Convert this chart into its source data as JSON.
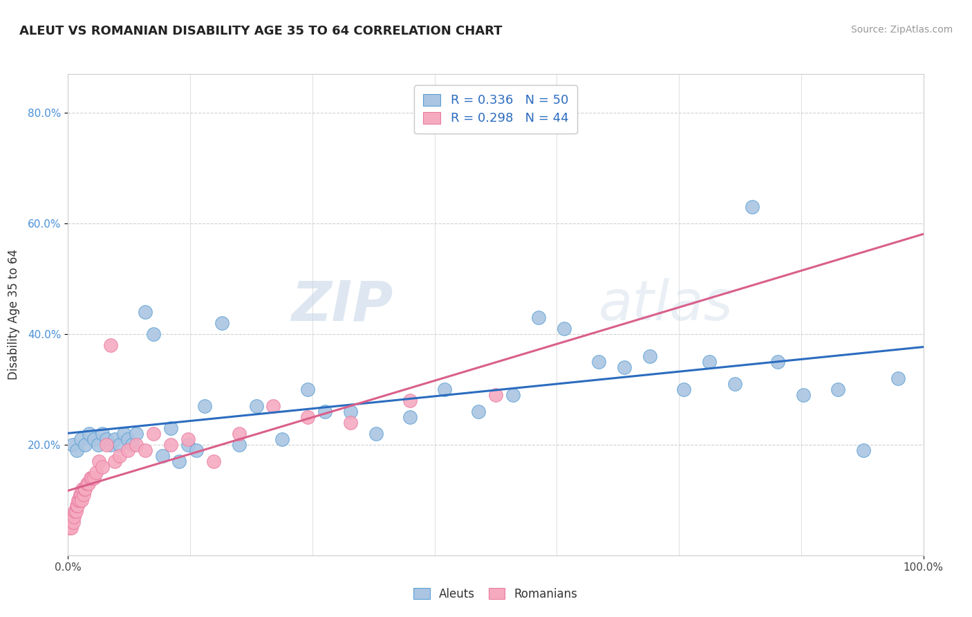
{
  "title": "ALEUT VS ROMANIAN DISABILITY AGE 35 TO 64 CORRELATION CHART",
  "source": "Source: ZipAtlas.com",
  "ylabel": "Disability Age 35 to 64",
  "xlim": [
    0,
    1.0
  ],
  "ylim": [
    0,
    0.87
  ],
  "ytick_values": [
    0.2,
    0.4,
    0.6,
    0.8
  ],
  "ytick_labels": [
    "20.0%",
    "40.0%",
    "60.0%",
    "80.0%"
  ],
  "legend_r1": "R = 0.336",
  "legend_n1": "N = 50",
  "legend_r2": "R = 0.298",
  "legend_n2": "N = 44",
  "aleut_color": "#aac5e2",
  "romanian_color": "#f5aac0",
  "aleut_edge_color": "#5a9fd4",
  "romanian_edge_color": "#e87aa0",
  "aleut_line_color": "#2b6cbf",
  "romanian_line_color": "#d95f8a",
  "watermark_zip": "ZIP",
  "watermark_atlas": "atlas",
  "aleut_x": [
    0.005,
    0.01,
    0.015,
    0.02,
    0.025,
    0.03,
    0.035,
    0.04,
    0.045,
    0.05,
    0.055,
    0.06,
    0.065,
    0.07,
    0.075,
    0.08,
    0.09,
    0.1,
    0.11,
    0.12,
    0.13,
    0.14,
    0.15,
    0.16,
    0.18,
    0.2,
    0.22,
    0.25,
    0.28,
    0.3,
    0.33,
    0.36,
    0.4,
    0.44,
    0.48,
    0.52,
    0.55,
    0.58,
    0.62,
    0.65,
    0.68,
    0.72,
    0.75,
    0.78,
    0.8,
    0.83,
    0.86,
    0.9,
    0.93,
    0.97
  ],
  "aleut_y": [
    0.2,
    0.19,
    0.21,
    0.2,
    0.22,
    0.21,
    0.2,
    0.22,
    0.21,
    0.2,
    0.21,
    0.2,
    0.22,
    0.21,
    0.2,
    0.22,
    0.44,
    0.4,
    0.18,
    0.23,
    0.17,
    0.2,
    0.19,
    0.27,
    0.42,
    0.2,
    0.27,
    0.21,
    0.3,
    0.26,
    0.26,
    0.22,
    0.25,
    0.3,
    0.26,
    0.29,
    0.43,
    0.41,
    0.35,
    0.34,
    0.36,
    0.3,
    0.35,
    0.31,
    0.63,
    0.35,
    0.29,
    0.3,
    0.19,
    0.32
  ],
  "romanian_x": [
    0.002,
    0.003,
    0.004,
    0.005,
    0.006,
    0.007,
    0.008,
    0.009,
    0.01,
    0.011,
    0.012,
    0.013,
    0.014,
    0.015,
    0.016,
    0.017,
    0.018,
    0.019,
    0.02,
    0.022,
    0.024,
    0.026,
    0.028,
    0.03,
    0.033,
    0.036,
    0.04,
    0.045,
    0.05,
    0.055,
    0.06,
    0.07,
    0.08,
    0.09,
    0.1,
    0.12,
    0.14,
    0.17,
    0.2,
    0.24,
    0.28,
    0.33,
    0.4,
    0.5
  ],
  "romanian_y": [
    0.05,
    0.06,
    0.05,
    0.07,
    0.06,
    0.07,
    0.08,
    0.08,
    0.09,
    0.09,
    0.1,
    0.1,
    0.11,
    0.11,
    0.1,
    0.12,
    0.11,
    0.12,
    0.12,
    0.13,
    0.13,
    0.14,
    0.14,
    0.14,
    0.15,
    0.17,
    0.16,
    0.2,
    0.38,
    0.17,
    0.18,
    0.19,
    0.2,
    0.19,
    0.22,
    0.2,
    0.21,
    0.17,
    0.22,
    0.27,
    0.25,
    0.24,
    0.28,
    0.29
  ]
}
